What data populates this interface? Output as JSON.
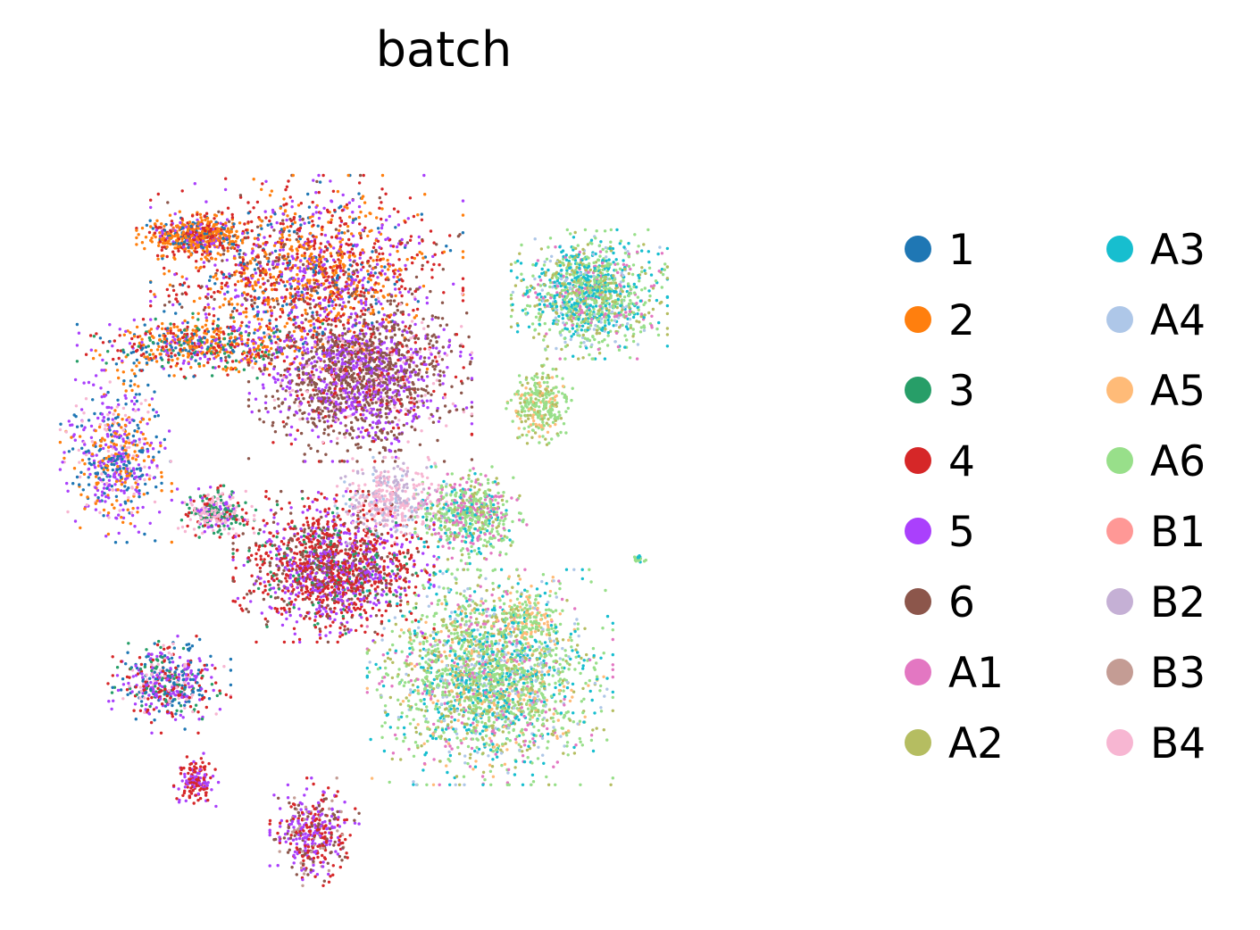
{
  "chart_data": {
    "type": "scatter",
    "title": "batch",
    "xlabel": "",
    "ylabel": "",
    "grid": false,
    "axes_visible": false,
    "legend_placement": "right",
    "legend_columns": 2,
    "xlim": [
      0,
      100
    ],
    "ylim": [
      0,
      100
    ],
    "series": [
      {
        "name": "1",
        "color": "#1f77b4"
      },
      {
        "name": "2",
        "color": "#ff7f0e"
      },
      {
        "name": "3",
        "color": "#279e68"
      },
      {
        "name": "4",
        "color": "#d62728"
      },
      {
        "name": "5",
        "color": "#aa40fc"
      },
      {
        "name": "6",
        "color": "#8c564b"
      },
      {
        "name": "A1",
        "color": "#e377c2"
      },
      {
        "name": "A2",
        "color": "#b5bd61"
      },
      {
        "name": "A3",
        "color": "#17becf"
      },
      {
        "name": "A4",
        "color": "#aec7e8"
      },
      {
        "name": "A5",
        "color": "#ffbb78"
      },
      {
        "name": "A6",
        "color": "#98df8a"
      },
      {
        "name": "B1",
        "color": "#ff9896"
      },
      {
        "name": "B2",
        "color": "#c5b0d5"
      },
      {
        "name": "B3",
        "color": "#c49c94"
      },
      {
        "name": "B4",
        "color": "#f7b6d2"
      }
    ],
    "clusters": [
      {
        "cx": 32,
        "cy": 80,
        "rx": 14,
        "ry": 9,
        "n": 1600,
        "mix": {
          "2": 3,
          "4": 3,
          "6": 1,
          "5": 2,
          "1": 1
        }
      },
      {
        "cx": 17,
        "cy": 85,
        "rx": 5,
        "ry": 2.2,
        "n": 500,
        "mix": {
          "2": 4,
          "4": 2,
          "5": 1,
          "1": 1
        }
      },
      {
        "cx": 39,
        "cy": 66,
        "rx": 10,
        "ry": 8,
        "n": 1800,
        "mix": {
          "6": 5,
          "5": 3,
          "4": 1,
          "B4": 1
        }
      },
      {
        "cx": 18,
        "cy": 70,
        "rx": 11,
        "ry": 3,
        "n": 600,
        "mix": {
          "2": 2,
          "4": 2,
          "1": 1,
          "5": 1,
          "3": 1
        }
      },
      {
        "cx": 7,
        "cy": 55,
        "rx": 5,
        "ry": 8,
        "n": 600,
        "mix": {
          "5": 3,
          "2": 2,
          "1": 2,
          "B4": 1
        }
      },
      {
        "cx": 20,
        "cy": 47.5,
        "rx": 3.5,
        "ry": 2.4,
        "n": 300,
        "mix": {
          "3": 2,
          "B4": 2,
          "5": 1,
          "4": 1
        }
      },
      {
        "cx": 35.5,
        "cy": 40,
        "rx": 9,
        "ry": 7,
        "n": 1600,
        "mix": {
          "4": 5,
          "5": 3,
          "6": 2,
          "3": 1
        }
      },
      {
        "cx": 43,
        "cy": 49,
        "rx": 5,
        "ry": 4,
        "n": 400,
        "mix": {
          "B4": 4,
          "B2": 3,
          "A4": 1
        }
      },
      {
        "cx": 56,
        "cy": 25,
        "rx": 11,
        "ry": 10,
        "n": 2400,
        "mix": {
          "A6": 4,
          "A2": 2,
          "A3": 2,
          "A4": 1,
          "A5": 1,
          "A1": 1
        }
      },
      {
        "cx": 53.5,
        "cy": 47,
        "rx": 5,
        "ry": 4.5,
        "n": 600,
        "mix": {
          "A6": 3,
          "A1": 2,
          "A3": 1,
          "A2": 1
        }
      },
      {
        "cx": 69,
        "cy": 77,
        "rx": 7,
        "ry": 6,
        "n": 1200,
        "mix": {
          "A6": 3,
          "A3": 3,
          "A2": 2,
          "A4": 1,
          "A1": 1
        }
      },
      {
        "cx": 62.5,
        "cy": 62,
        "rx": 3,
        "ry": 4,
        "n": 300,
        "mix": {
          "A6": 3,
          "A2": 1,
          "A5": 1
        }
      },
      {
        "cx": 61.5,
        "cy": 33,
        "rx": 2.5,
        "ry": 2.5,
        "n": 120,
        "mix": {
          "A5": 2,
          "A6": 2
        }
      },
      {
        "cx": 14,
        "cy": 24,
        "rx": 5.5,
        "ry": 4.5,
        "n": 500,
        "mix": {
          "1": 2,
          "5": 2,
          "4": 2,
          "3": 1,
          "B4": 1
        }
      },
      {
        "cx": 17.5,
        "cy": 11,
        "rx": 2,
        "ry": 2.5,
        "n": 150,
        "mix": {
          "4": 3,
          "5": 2
        }
      },
      {
        "cx": 33,
        "cy": 4,
        "rx": 4,
        "ry": 5,
        "n": 400,
        "mix": {
          "5": 3,
          "4": 3,
          "6": 2,
          "B3": 1
        }
      },
      {
        "cx": 75.5,
        "cy": 41,
        "rx": 0.8,
        "ry": 0.4,
        "n": 20,
        "mix": {
          "A3": 1,
          "A6": 1
        }
      }
    ]
  }
}
